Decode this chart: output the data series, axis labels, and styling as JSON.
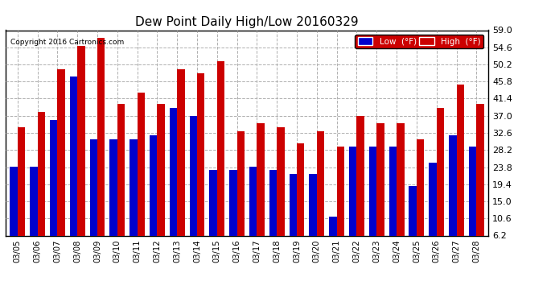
{
  "title": "Dew Point Daily High/Low 20160329",
  "copyright": "Copyright 2016 Cartronics.com",
  "dates": [
    "03/05",
    "03/06",
    "03/07",
    "03/08",
    "03/09",
    "03/10",
    "03/11",
    "03/12",
    "03/13",
    "03/14",
    "03/15",
    "03/16",
    "03/17",
    "03/18",
    "03/19",
    "03/20",
    "03/21",
    "03/22",
    "03/23",
    "03/24",
    "03/25",
    "03/26",
    "03/27",
    "03/28"
  ],
  "low": [
    24,
    24,
    36,
    47,
    31,
    31,
    31,
    32,
    39,
    37,
    23,
    23,
    24,
    23,
    22,
    22,
    11,
    29,
    29,
    29,
    19,
    25,
    32,
    29
  ],
  "high": [
    34,
    38,
    49,
    55,
    57,
    40,
    43,
    40,
    49,
    48,
    51,
    33,
    35,
    34,
    30,
    33,
    29,
    37,
    35,
    35,
    31,
    39,
    45,
    40
  ],
  "low_color": "#0000cc",
  "high_color": "#cc0000",
  "bg_color": "#ffffff",
  "plot_bg_color": "#ffffff",
  "grid_color": "#b0b0b0",
  "ylim_min": 6.2,
  "ylim_max": 59.0,
  "yticks": [
    6.2,
    10.6,
    15.0,
    19.4,
    23.8,
    28.2,
    32.6,
    37.0,
    41.4,
    45.8,
    50.2,
    54.6,
    59.0
  ],
  "legend_low_label": "Low  (°F)",
  "legend_high_label": "High  (°F)",
  "bar_width": 0.38,
  "figwidth": 6.9,
  "figheight": 3.75,
  "title_fontsize": 11
}
